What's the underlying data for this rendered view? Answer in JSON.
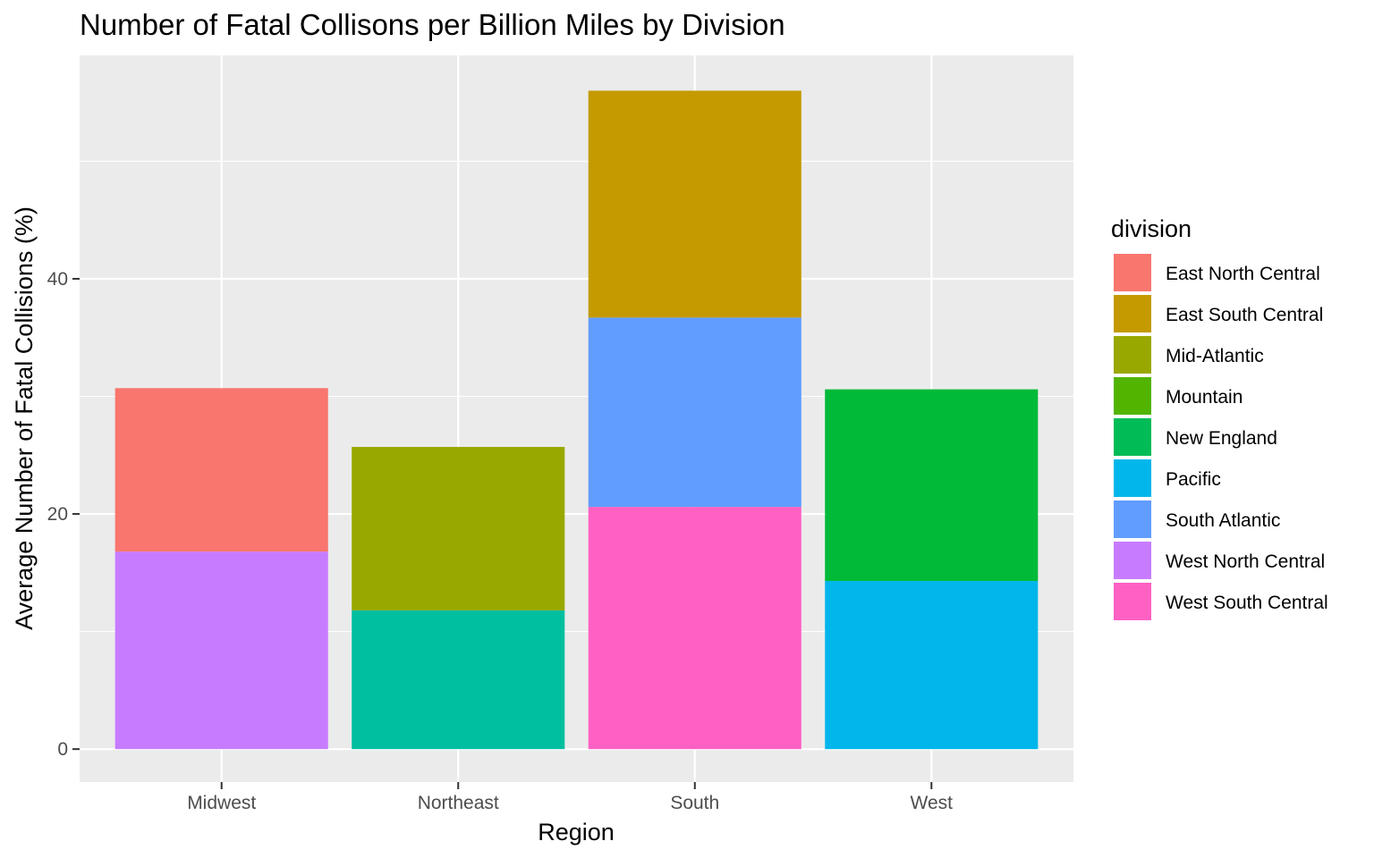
{
  "chart_data": {
    "type": "bar",
    "stacked": true,
    "title": "Number of Fatal Collisons per Billion Miles by Division",
    "xlabel": "Region",
    "ylabel": "Average Number of Fatal Collisions (%)",
    "categories": [
      "Midwest",
      "Northeast",
      "South",
      "West"
    ],
    "ylim": [
      -2.8,
      59.0
    ],
    "yticks": [
      0,
      20,
      40
    ],
    "grid": true,
    "legend": {
      "title": "division",
      "position": "right",
      "entries": [
        {
          "name": "East North Central",
          "color": "#F8766D"
        },
        {
          "name": "East South Central",
          "color": "#C49A00"
        },
        {
          "name": "Mid-Atlantic",
          "color": "#99A800"
        },
        {
          "name": "Mountain",
          "color": "#53B400"
        },
        {
          "name": "New England",
          "color": "#00BC56"
        },
        {
          "name": "Pacific",
          "color": "#00B6EB"
        },
        {
          "name": "South Atlantic",
          "color": "#619CFF"
        },
        {
          "name": "West North Central",
          "color": "#C77CFF"
        },
        {
          "name": "West South Central",
          "color": "#FF61C3"
        }
      ]
    },
    "segments": [
      {
        "category": "Midwest",
        "division": "West North Central",
        "color": "#C77CFF",
        "value": 16.8
      },
      {
        "category": "Midwest",
        "division": "East North Central",
        "color": "#F8766D",
        "value": 13.9
      },
      {
        "category": "Northeast",
        "division": "New England",
        "color": "#00BFA0",
        "value": 11.8
      },
      {
        "category": "Northeast",
        "division": "Mid-Atlantic",
        "color": "#99A800",
        "value": 13.9
      },
      {
        "category": "South",
        "division": "West South Central",
        "color": "#FF61C3",
        "value": 20.6
      },
      {
        "category": "South",
        "division": "South Atlantic",
        "color": "#619CFF",
        "value": 16.1
      },
      {
        "category": "South",
        "division": "East South Central",
        "color": "#C49A00",
        "value": 19.3
      },
      {
        "category": "West",
        "division": "Pacific",
        "color": "#00B6EB",
        "value": 14.3
      },
      {
        "category": "West",
        "division": "Mountain",
        "color": "#00BA38",
        "value": 16.3
      }
    ]
  }
}
